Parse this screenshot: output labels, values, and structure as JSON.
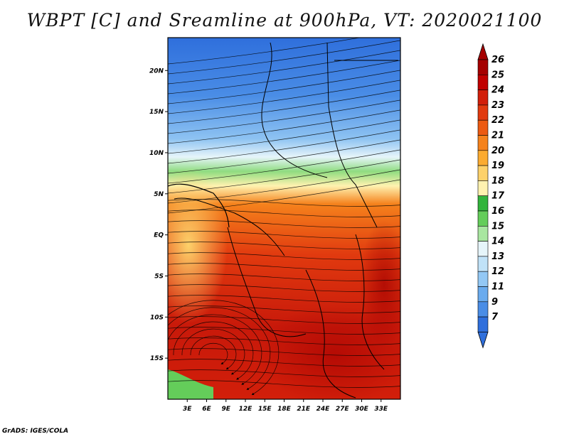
{
  "title": "WBPT [C] and Sreamline at 900hPa, VT: 2020021100",
  "credit": "GrADS: IGES/COLA",
  "map": {
    "lon_range": [
      0,
      36
    ],
    "lat_range": [
      -20,
      24
    ],
    "lon_ticks": [
      {
        "value": 3,
        "label": "3E"
      },
      {
        "value": 6,
        "label": "6E"
      },
      {
        "value": 9,
        "label": "9E"
      },
      {
        "value": 12,
        "label": "12E"
      },
      {
        "value": 15,
        "label": "15E"
      },
      {
        "value": 18,
        "label": "18E"
      },
      {
        "value": 21,
        "label": "21E"
      },
      {
        "value": 24,
        "label": "24E"
      },
      {
        "value": 27,
        "label": "27E"
      },
      {
        "value": 30,
        "label": "30E"
      },
      {
        "value": 33,
        "label": "33E"
      }
    ],
    "lat_ticks": [
      {
        "value": 20,
        "label": "20N"
      },
      {
        "value": 15,
        "label": "15N"
      },
      {
        "value": 10,
        "label": "10N"
      },
      {
        "value": 5,
        "label": "5N"
      },
      {
        "value": 0,
        "label": "EQ"
      },
      {
        "value": -5,
        "label": "5S"
      },
      {
        "value": -10,
        "label": "10S"
      },
      {
        "value": -15,
        "label": "15S"
      }
    ]
  },
  "colorbar": {
    "labels": [
      "26",
      "25",
      "24",
      "23",
      "22",
      "21",
      "20",
      "19",
      "18",
      "17",
      "16",
      "15",
      "14",
      "13",
      "12",
      "11",
      "9",
      "7"
    ],
    "colors": [
      "#a50000",
      "#c00000",
      "#d21f0a",
      "#e13a0f",
      "#ec5a12",
      "#f5821c",
      "#fbab31",
      "#fdd16a",
      "#fff2b0",
      "#32b43c",
      "#64cd5a",
      "#a8e6a0",
      "#e6f5fa",
      "#c0e2f8",
      "#93c8f5",
      "#6aabee",
      "#4a8de6",
      "#2f6fdc"
    ],
    "top_arrow_color": "#a50000",
    "bottom_arrow_color": "#2f6fdc"
  }
}
